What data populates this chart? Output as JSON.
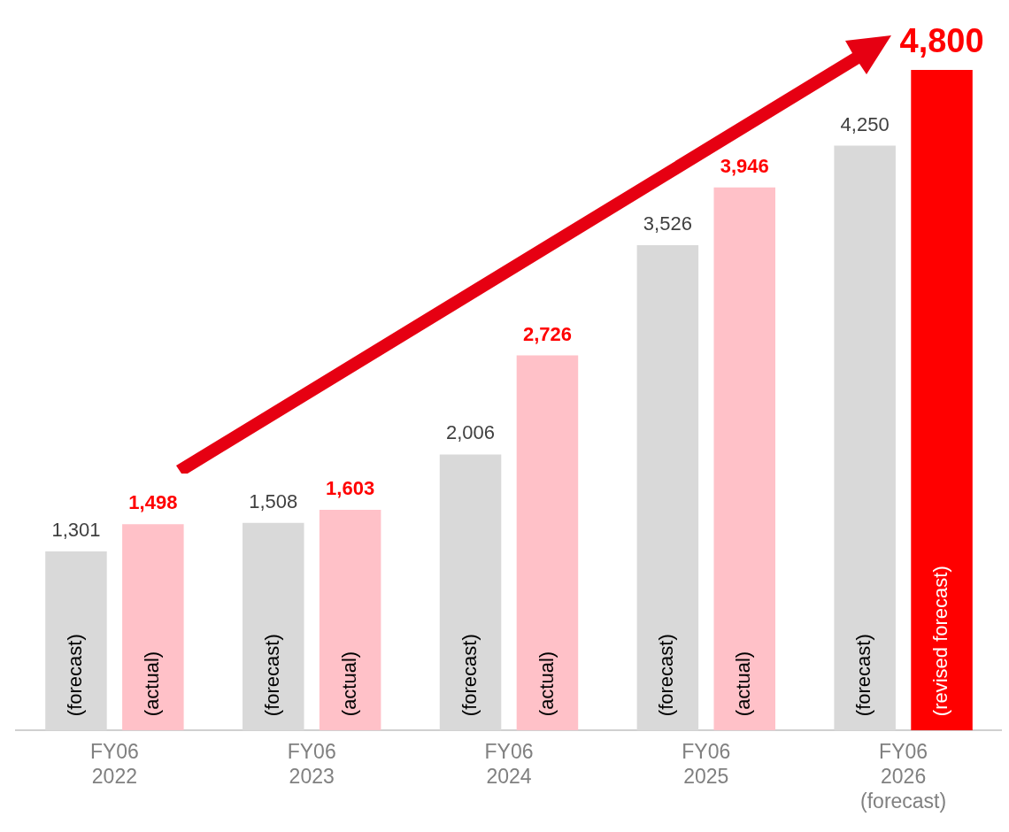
{
  "chart_data": {
    "type": "bar",
    "categories": [
      "FY06\n2022",
      "FY06\n2023",
      "FY06\n2024",
      "FY06\n2025",
      "FY06\n2026\n(forecast)"
    ],
    "series": [
      {
        "name": "(forecast)",
        "color": "#d9d9d9",
        "values": [
          1301,
          1508,
          2006,
          3526,
          4250
        ],
        "value_labels": [
          "1,301",
          "1,508",
          "2,006",
          "3,526",
          "4,250"
        ]
      },
      {
        "name": "(actual)",
        "color": "#ffc1c8",
        "values": [
          1498,
          1603,
          2726,
          3946,
          null
        ],
        "value_labels": [
          "1,498",
          "1,603",
          "2,726",
          "3,946",
          null
        ]
      },
      {
        "name": "(revised forecast)",
        "color": "#ff0000",
        "values": [
          null,
          null,
          null,
          null,
          4800
        ],
        "value_labels": [
          null,
          null,
          null,
          null,
          "4,800"
        ]
      }
    ],
    "grid": false,
    "legend": false
  }
}
